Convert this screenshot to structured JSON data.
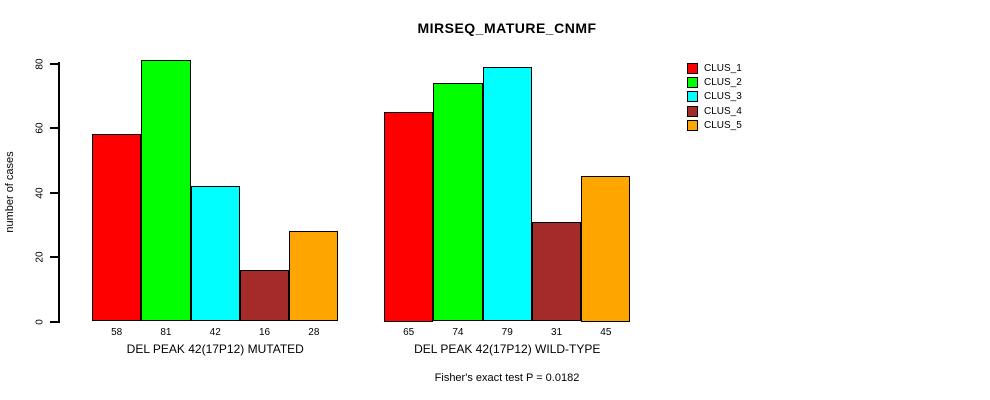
{
  "chart_data": {
    "type": "bar",
    "title": "MIRSEQ_MATURE_CNMF",
    "xlabel": "",
    "ylabel": "number of cases",
    "ylim": [
      0,
      85
    ],
    "yticks": [
      0,
      20,
      40,
      60,
      80
    ],
    "grid": false,
    "legend_position": "right-outside",
    "bar_value_labels": true,
    "categories": [
      "DEL PEAK 42(17P12) MUTATED",
      "DEL PEAK 42(17P12) WILD-TYPE"
    ],
    "series": [
      {
        "name": "CLUS_1",
        "color": "#FF0000",
        "values": [
          58,
          65
        ]
      },
      {
        "name": "CLUS_2",
        "color": "#00FF00",
        "values": [
          81,
          74
        ]
      },
      {
        "name": "CLUS_3",
        "color": "#00FFFF",
        "values": [
          42,
          79
        ]
      },
      {
        "name": "CLUS_4",
        "color": "#A52A2A",
        "values": [
          16,
          31
        ]
      },
      {
        "name": "CLUS_5",
        "color": "#FFA500",
        "values": [
          28,
          45
        ]
      }
    ],
    "annotation": "Fisher's exact test P = 0.0182"
  }
}
